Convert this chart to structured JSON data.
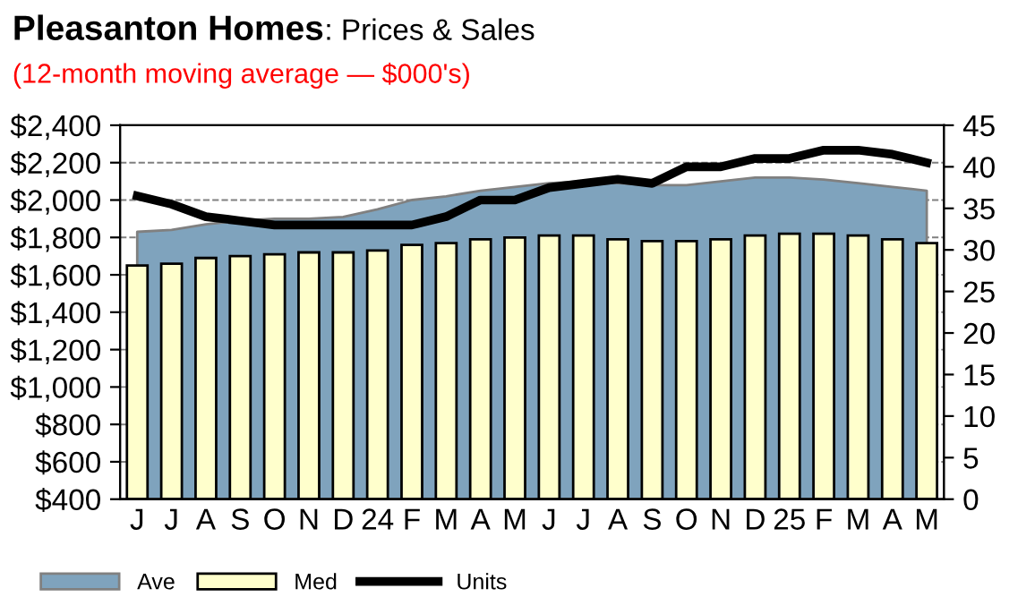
{
  "chart_data": {
    "type": "bar",
    "title": "Pleasanton Homes: Prices & Sales",
    "subtitle": "(12-month moving average — $000's)",
    "categories": [
      "J",
      "J",
      "A",
      "S",
      "O",
      "N",
      "D",
      "24",
      "F",
      "M",
      "A",
      "M",
      "J",
      "J",
      "A",
      "S",
      "O",
      "N",
      "D",
      "25",
      "F",
      "M",
      "A",
      "M"
    ],
    "series": [
      {
        "name": "Ave",
        "type": "area",
        "color": "#7fa3bd",
        "values": [
          1830,
          1840,
          1870,
          1890,
          1900,
          1900,
          1910,
          1950,
          2000,
          2020,
          2050,
          2070,
          2090,
          2100,
          2090,
          2080,
          2080,
          2100,
          2120,
          2120,
          2110,
          2090,
          2070,
          2050
        ]
      },
      {
        "name": "Med",
        "color": "#ffffcc",
        "values": [
          1650,
          1660,
          1690,
          1700,
          1710,
          1720,
          1720,
          1730,
          1760,
          1770,
          1790,
          1800,
          1810,
          1810,
          1790,
          1780,
          1780,
          1790,
          1810,
          1820,
          1820,
          1810,
          1790,
          1770
        ]
      },
      {
        "name": "Units",
        "type": "line",
        "axis": "y2",
        "color": "#000000",
        "values": [
          36.5,
          35.5,
          34,
          33.5,
          33,
          33,
          33,
          33,
          33,
          34,
          36,
          36,
          37.5,
          38,
          38.5,
          38,
          40,
          40,
          41,
          41,
          42,
          42,
          41.5,
          40.5
        ]
      }
    ],
    "ylim": [
      400,
      2400
    ],
    "yticks": [
      {
        "value": 400,
        "label": "$400"
      },
      {
        "value": 600,
        "label": "$600"
      },
      {
        "value": 800,
        "label": "$800"
      },
      {
        "value": 1000,
        "label": "$1,000"
      },
      {
        "value": 1200,
        "label": "$1,200"
      },
      {
        "value": 1400,
        "label": "$1,400"
      },
      {
        "value": 1600,
        "label": "$1,600"
      },
      {
        "value": 1800,
        "label": "$1,800"
      },
      {
        "value": 2000,
        "label": "$2,000"
      },
      {
        "value": 2200,
        "label": "$2,200"
      },
      {
        "value": 2400,
        "label": "$2,400"
      }
    ],
    "y2lim": [
      0,
      45
    ],
    "y2ticks": [
      0,
      5,
      10,
      15,
      20,
      25,
      30,
      35,
      40,
      45
    ],
    "grid": "y",
    "legend": "bottom left",
    "marker": "none",
    "line_style": "solid"
  }
}
